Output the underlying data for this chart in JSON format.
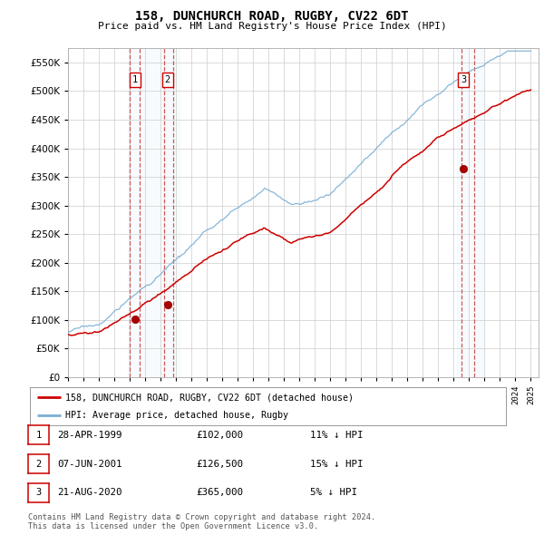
{
  "title": "158, DUNCHURCH ROAD, RUGBY, CV22 6DT",
  "subtitle": "Price paid vs. HM Land Registry's House Price Index (HPI)",
  "ytick_values": [
    0,
    50000,
    100000,
    150000,
    200000,
    250000,
    300000,
    350000,
    400000,
    450000,
    500000,
    550000
  ],
  "xlim": [
    1995.0,
    2025.5
  ],
  "ylim": [
    0,
    575000
  ],
  "purchases": [
    {
      "date": 1999.33,
      "price": 102000,
      "label": "1"
    },
    {
      "date": 2001.44,
      "price": 126500,
      "label": "2"
    },
    {
      "date": 2020.64,
      "price": 365000,
      "label": "3"
    }
  ],
  "legend_entries": [
    {
      "label": "158, DUNCHURCH ROAD, RUGBY, CV22 6DT (detached house)",
      "color": "#cc0000"
    },
    {
      "label": "HPI: Average price, detached house, Rugby",
      "color": "#7aafd4"
    }
  ],
  "table_rows": [
    {
      "num": "1",
      "date": "28-APR-1999",
      "price": "£102,000",
      "hpi": "11% ↓ HPI"
    },
    {
      "num": "2",
      "date": "07-JUN-2001",
      "price": "£126,500",
      "hpi": "15% ↓ HPI"
    },
    {
      "num": "3",
      "date": "21-AUG-2020",
      "price": "£365,000",
      "hpi": "5% ↓ HPI"
    }
  ],
  "footer": "Contains HM Land Registry data © Crown copyright and database right 2024.\nThis data is licensed under the Open Government Licence v3.0.",
  "bg_color": "#ffffff",
  "grid_color": "#cccccc",
  "hpi_line_color": "#7aafd4",
  "price_line_color": "#cc0000",
  "shade_color": "#dce9f5",
  "vline_color": "#cc4444",
  "box_edge_color": "#cc0000",
  "num_months": 361
}
